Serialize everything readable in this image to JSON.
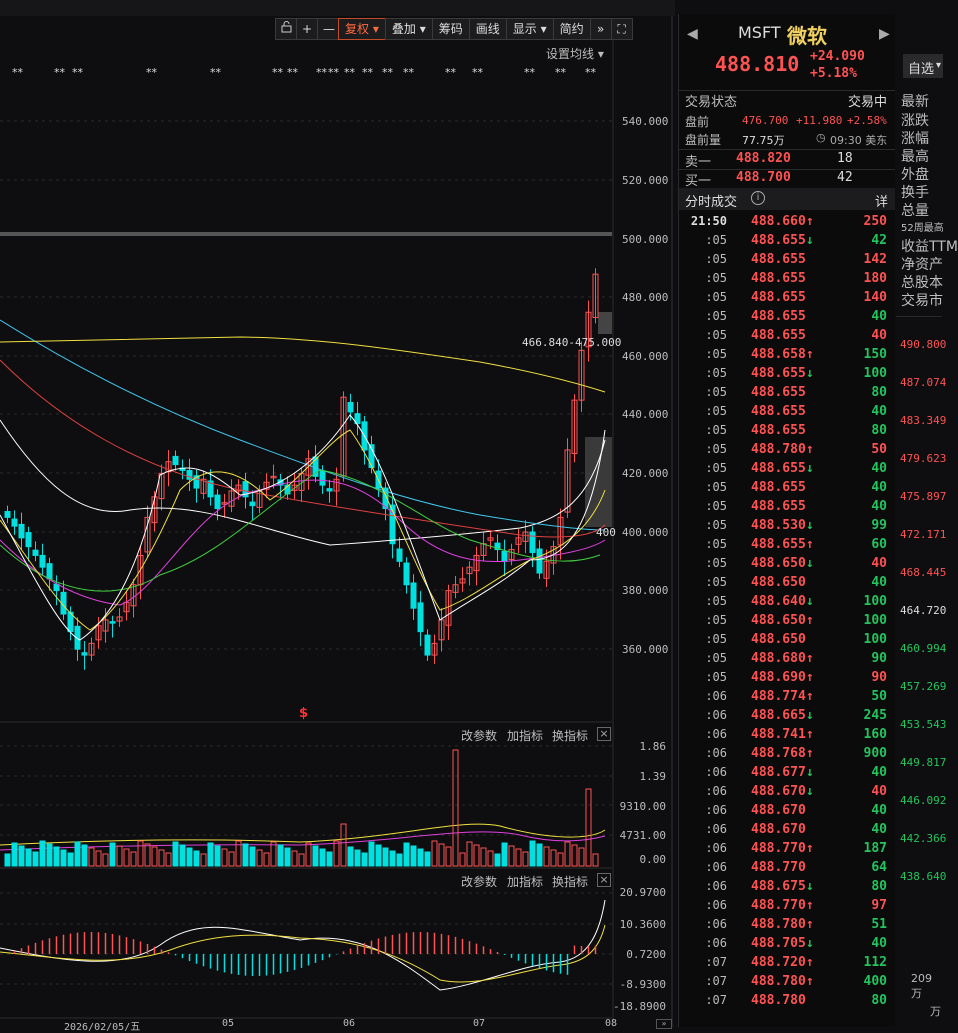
{
  "toolbar": {
    "lock_icon": "lock-icon",
    "plus_label": "+",
    "minus_label": "—",
    "fuquan_label": "复权",
    "diejia_label": "叠加",
    "chouma_label": "筹码",
    "huaxian_label": "画线",
    "xianshi_label": "显示",
    "jianyue_label": "简约",
    "forward_icon": "fast-forward-icon",
    "expand_icon": "expand-icon"
  },
  "chart": {
    "ma_setting_label": "设置均线",
    "price_ticks": [
      "540.000",
      "520.000",
      "500.000",
      "480.000",
      "460.000",
      "440.000",
      "420.000",
      "400.000",
      "380.000",
      "360.000"
    ],
    "range_label": "466.840-475.000",
    "mid_label": "400",
    "vol_ticks": [
      "1.86",
      "1.39",
      "9310.00",
      "4731.00",
      "0.00"
    ],
    "vol_buttons": [
      "改参数",
      "加指标",
      "换指标"
    ],
    "macd_ticks": [
      "20.9700",
      "10.3600",
      "0.7200",
      "-8.9300",
      "-18.8900"
    ],
    "macd_buttons": [
      "改参数",
      "加指标",
      "换指标"
    ],
    "date_labels": [
      "2026/02/05/五",
      "05",
      "06",
      "07",
      "08"
    ],
    "event_marker": "$",
    "colors": {
      "up": "#ff5252",
      "down": "#00e0e0",
      "ma5": "#ffffff",
      "ma10": "#f0e040",
      "ma20": "#e040e0",
      "ma30": "#40d040"
    }
  },
  "quote": {
    "symbol": "MSFT",
    "name": "微软",
    "price": "488.810",
    "change": "+24.090",
    "change_pct": "+5.18%",
    "status_label": "交易状态",
    "status_value": "交易中",
    "pre_label": "盘前",
    "pre_price": "476.700",
    "pre_change": "+11.980",
    "pre_pct": "+2.58%",
    "pre_vol_label": "盘前量",
    "pre_vol": "77.75万",
    "pre_time": "09:30 美东",
    "ask_label": "卖一",
    "ask_price": "488.820",
    "ask_vol": "18",
    "bid_label": "买一",
    "bid_price": "488.700",
    "bid_vol": "42",
    "ticks_label": "分时成交",
    "detail_label": "详",
    "ticks": [
      {
        "t": "21:50",
        "p": "488.660",
        "d": "up",
        "v": "250"
      },
      {
        "t": ":05",
        "p": "488.655",
        "d": "dn",
        "v": "42"
      },
      {
        "t": ":05",
        "p": "488.655",
        "d": "",
        "v": "142"
      },
      {
        "t": ":05",
        "p": "488.655",
        "d": "",
        "v": "180"
      },
      {
        "t": ":05",
        "p": "488.655",
        "d": "",
        "v": "140"
      },
      {
        "t": ":05",
        "p": "488.655",
        "d": "",
        "v": "40"
      },
      {
        "t": ":05",
        "p": "488.655",
        "d": "",
        "v": "40"
      },
      {
        "t": ":05",
        "p": "488.658",
        "d": "up",
        "v": "150"
      },
      {
        "t": ":05",
        "p": "488.655",
        "d": "dn",
        "v": "100"
      },
      {
        "t": ":05",
        "p": "488.655",
        "d": "",
        "v": "80"
      },
      {
        "t": ":05",
        "p": "488.655",
        "d": "",
        "v": "40"
      },
      {
        "t": ":05",
        "p": "488.655",
        "d": "",
        "v": "80"
      },
      {
        "t": ":05",
        "p": "488.780",
        "d": "up",
        "v": "50"
      },
      {
        "t": ":05",
        "p": "488.655",
        "d": "dn",
        "v": "40"
      },
      {
        "t": ":05",
        "p": "488.655",
        "d": "",
        "v": "40"
      },
      {
        "t": ":05",
        "p": "488.655",
        "d": "",
        "v": "40"
      },
      {
        "t": ":05",
        "p": "488.530",
        "d": "dn",
        "v": "99"
      },
      {
        "t": ":05",
        "p": "488.655",
        "d": "up",
        "v": "60"
      },
      {
        "t": ":05",
        "p": "488.650",
        "d": "dn",
        "v": "40"
      },
      {
        "t": ":05",
        "p": "488.650",
        "d": "",
        "v": "40"
      },
      {
        "t": ":05",
        "p": "488.640",
        "d": "dn",
        "v": "100"
      },
      {
        "t": ":05",
        "p": "488.650",
        "d": "up",
        "v": "100"
      },
      {
        "t": ":05",
        "p": "488.650",
        "d": "",
        "v": "100"
      },
      {
        "t": ":05",
        "p": "488.680",
        "d": "up",
        "v": "90"
      },
      {
        "t": ":05",
        "p": "488.690",
        "d": "up",
        "v": "90"
      },
      {
        "t": ":06",
        "p": "488.774",
        "d": "up",
        "v": "50"
      },
      {
        "t": ":06",
        "p": "488.665",
        "d": "dn",
        "v": "245"
      },
      {
        "t": ":06",
        "p": "488.741",
        "d": "up",
        "v": "160"
      },
      {
        "t": ":06",
        "p": "488.768",
        "d": "up",
        "v": "900"
      },
      {
        "t": ":06",
        "p": "488.677",
        "d": "dn",
        "v": "40"
      },
      {
        "t": ":06",
        "p": "488.670",
        "d": "dn",
        "v": "40"
      },
      {
        "t": ":06",
        "p": "488.670",
        "d": "",
        "v": "40"
      },
      {
        "t": ":06",
        "p": "488.670",
        "d": "",
        "v": "40"
      },
      {
        "t": ":06",
        "p": "488.770",
        "d": "up",
        "v": "187"
      },
      {
        "t": ":06",
        "p": "488.770",
        "d": "",
        "v": "64"
      },
      {
        "t": ":06",
        "p": "488.675",
        "d": "dn",
        "v": "80"
      },
      {
        "t": ":06",
        "p": "488.770",
        "d": "up",
        "v": "97"
      },
      {
        "t": ":06",
        "p": "488.780",
        "d": "up",
        "v": "51"
      },
      {
        "t": ":06",
        "p": "488.705",
        "d": "dn",
        "v": "40"
      },
      {
        "t": ":07",
        "p": "488.720",
        "d": "up",
        "v": "112"
      },
      {
        "t": ":07",
        "p": "488.780",
        "d": "up",
        "v": "400"
      },
      {
        "t": ":07",
        "p": "488.780",
        "d": "",
        "v": "80"
      }
    ]
  },
  "side": {
    "select_label": "自选",
    "labels": [
      "最新",
      "涨跌",
      "涨幅",
      "最高",
      "外盘",
      "换手",
      "总量",
      "52周最高",
      "收益TTM",
      "净资产",
      "总股本",
      "交易市"
    ],
    "prices": [
      "490.800",
      "487.074",
      "483.349",
      "479.623",
      "475.897",
      "472.171",
      "468.445",
      "464.720",
      "460.994",
      "457.269",
      "453.543",
      "449.817",
      "446.092",
      "442.366",
      "438.640"
    ],
    "bottom_labels": [
      "209万",
      "万"
    ]
  }
}
